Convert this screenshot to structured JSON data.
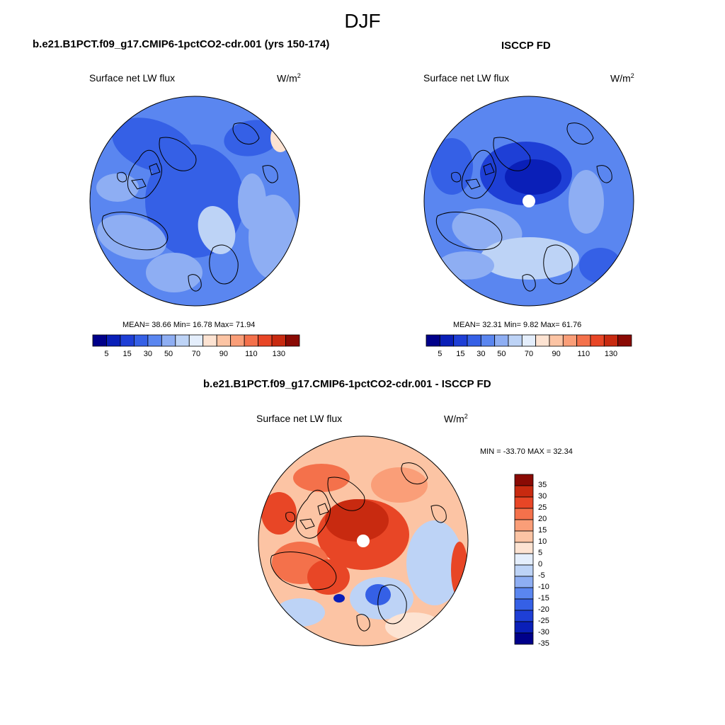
{
  "main_title": "DJF",
  "unit": "W/m",
  "unit_exp": "2",
  "colors": {
    "abs_scale": [
      "#00008a",
      "#0a1fb8",
      "#1e3fd6",
      "#3560e6",
      "#5a86f0",
      "#8eaef3",
      "#bdd3f6",
      "#e4eefc",
      "#fde3d2",
      "#fcc4a4",
      "#fa9e78",
      "#f4714b",
      "#e84626",
      "#c82a10",
      "#8a0a04"
    ],
    "diff_scale": [
      "#00008a",
      "#0a1fb8",
      "#1e3fd6",
      "#3560e6",
      "#5a86f0",
      "#8eaef3",
      "#bdd3f6",
      "#e4eefc",
      "#fde3d2",
      "#fcc4a4",
      "#fa9e78",
      "#f4714b",
      "#e84626",
      "#c82a10",
      "#8a0a04"
    ],
    "missing": "#ffffff",
    "coast": "#000000"
  },
  "panels": {
    "model": {
      "title": "b.e21.B1PCT.f09_g17.CMIP6-1pctCO2-cdr.001 (yrs 150-174)",
      "variable": "Surface net LW flux",
      "stats": "MEAN=  38.66  Min=  16.78  Max=  71.94"
    },
    "obs": {
      "title": "ISCCP FD",
      "variable": "Surface net LW flux",
      "stats": "MEAN=  32.31  Min=   9.82  Max=  61.76"
    },
    "diff": {
      "title": "b.e21.B1PCT.f09_g17.CMIP6-1pctCO2-cdr.001 - ISCCP FD",
      "variable": "Surface net LW flux",
      "stats": "MIN = -33.70 MAX =  32.34"
    }
  },
  "colorbar_abs": {
    "labels": [
      "5",
      "15",
      "30",
      "50",
      "70",
      "90",
      "110",
      "130"
    ]
  },
  "colorbar_diff": {
    "labels": [
      "35",
      "30",
      "25",
      "20",
      "15",
      "10",
      "5",
      "0",
      "-5",
      "-10",
      "-15",
      "-20",
      "-25",
      "-30",
      "-35"
    ]
  }
}
